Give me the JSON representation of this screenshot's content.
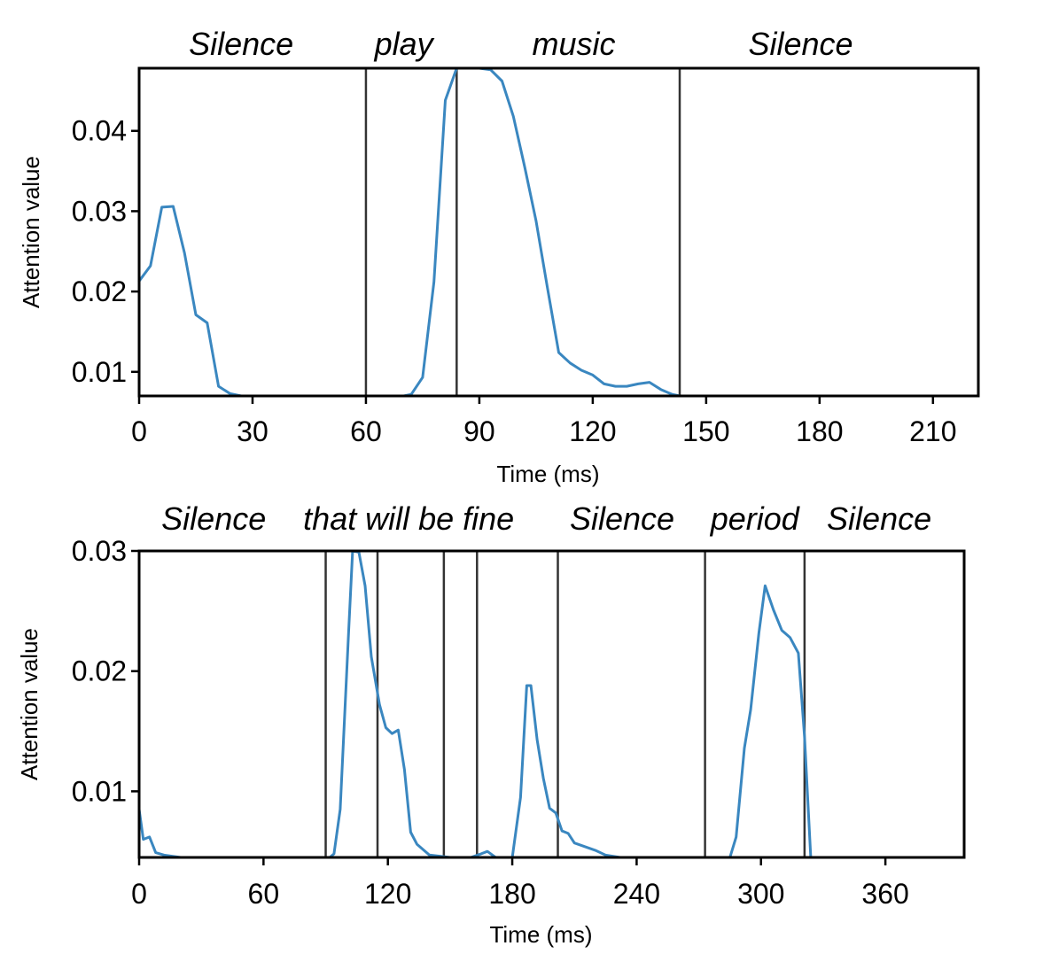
{
  "colors": {
    "series": "#3a87c0",
    "frame": "#000000",
    "boundary": "#333333"
  },
  "chart_data": [
    {
      "type": "line",
      "title": "",
      "xlabel": "Time (ms)",
      "ylabel": "Attention value",
      "xlim": [
        0,
        222
      ],
      "ylim": [
        0.007,
        0.0478
      ],
      "xticks": [
        0,
        30,
        60,
        90,
        120,
        150,
        180,
        210
      ],
      "yticks": [
        0.01,
        0.02,
        0.03,
        0.04
      ],
      "ytick_labels": [
        "0.01",
        "0.02",
        "0.03",
        "0.04"
      ],
      "grid": false,
      "word_boundaries": [
        60,
        84,
        143
      ],
      "words": [
        {
          "label": "Silence",
          "x": 27
        },
        {
          "label": "play",
          "x": 70
        },
        {
          "label": "music",
          "x": 115
        },
        {
          "label": "Silence",
          "x": 175
        }
      ],
      "series": [
        {
          "x": [
            0,
            3,
            6,
            9,
            12,
            15,
            18,
            21,
            24,
            27,
            30,
            40,
            50,
            60,
            70,
            72,
            75,
            78,
            81,
            84,
            87,
            90,
            93,
            96,
            99,
            102,
            105,
            108,
            111,
            114,
            117,
            120,
            123,
            126,
            129,
            132,
            135,
            138,
            141,
            143,
            145
          ],
          "y": [
            0.0213,
            0.0232,
            0.0305,
            0.0306,
            0.0248,
            0.0171,
            0.0161,
            0.0082,
            0.0073,
            0.007,
            0.007,
            0.007,
            0.007,
            0.007,
            0.007,
            0.0072,
            0.0093,
            0.0212,
            0.0438,
            0.0478,
            0.0478,
            0.0478,
            0.0476,
            0.0462,
            0.0418,
            0.0355,
            0.0288,
            0.0205,
            0.0124,
            0.0111,
            0.0102,
            0.0096,
            0.0085,
            0.0082,
            0.0082,
            0.0085,
            0.0087,
            0.0078,
            0.0072,
            0.007,
            0.007
          ]
        }
      ]
    },
    {
      "type": "line",
      "title": "",
      "xlabel": "Time (ms)",
      "ylabel": "Attention value",
      "xlim": [
        0,
        398
      ],
      "ylim": [
        0.0045,
        0.03
      ],
      "xticks": [
        0,
        60,
        120,
        180,
        240,
        300,
        360
      ],
      "yticks": [
        0.01,
        0.02,
        0.03
      ],
      "ytick_labels": [
        "0.01",
        "0.02",
        "0.03"
      ],
      "grid": false,
      "word_boundaries": [
        90,
        115,
        147,
        163,
        202,
        273,
        321
      ],
      "words": [
        {
          "label": "Silence",
          "x": 36
        },
        {
          "label": "that",
          "x": 92
        },
        {
          "label": "will be fine",
          "x": 145
        },
        {
          "label": "Silence",
          "x": 233
        },
        {
          "label": "period",
          "x": 297
        },
        {
          "label": "Silence",
          "x": 357
        }
      ],
      "series": [
        {
          "x": [
            0,
            2,
            5,
            8,
            12,
            20,
            40,
            60,
            80,
            90,
            92,
            94,
            97,
            101,
            103,
            106,
            109,
            112,
            116,
            119,
            122,
            125,
            128,
            131,
            134,
            140,
            150,
            155,
            160,
            165,
            168,
            172,
            176,
            180,
            184,
            187,
            189,
            192,
            195,
            198,
            201,
            204,
            207,
            210,
            215,
            220,
            225,
            232,
            240,
            260,
            280,
            285,
            288,
            292,
            295,
            299,
            302,
            306,
            310,
            314,
            318,
            321,
            324,
            330,
            360,
            398
          ],
          "y": [
            0.0085,
            0.006,
            0.0062,
            0.0049,
            0.0047,
            0.0045,
            0.0045,
            0.0045,
            0.0045,
            0.0045,
            0.0045,
            0.0048,
            0.0085,
            0.0231,
            0.03,
            0.0299,
            0.0271,
            0.0212,
            0.0172,
            0.0153,
            0.0148,
            0.0151,
            0.0118,
            0.0066,
            0.0056,
            0.0047,
            0.0045,
            0.0045,
            0.0045,
            0.0048,
            0.005,
            0.0045,
            0.0045,
            0.0045,
            0.0095,
            0.0188,
            0.0188,
            0.0143,
            0.0111,
            0.0086,
            0.0082,
            0.0067,
            0.0065,
            0.0057,
            0.0054,
            0.0051,
            0.0047,
            0.0045,
            0.0045,
            0.0045,
            0.0045,
            0.0045,
            0.0062,
            0.0136,
            0.0168,
            0.0232,
            0.0271,
            0.0251,
            0.0234,
            0.0228,
            0.0215,
            0.0145,
            0.0045,
            0.0045,
            0.0045,
            0.0045
          ]
        }
      ]
    }
  ]
}
